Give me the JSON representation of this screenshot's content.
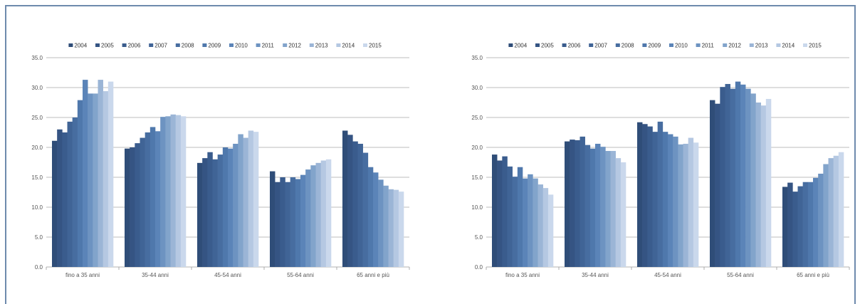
{
  "chart_data": [
    {
      "type": "bar",
      "title": "",
      "xlabel": "",
      "ylabel": "",
      "ylim": [
        0,
        35
      ],
      "yticks": [
        "0.0",
        "5.0",
        "10.0",
        "15.0",
        "20.0",
        "25.0",
        "30.0",
        "35.0"
      ],
      "grid": true,
      "legend_position": "top",
      "categories": [
        "fino a 35 anni",
        "35-44 anni",
        "45-54 anni",
        "55-64 anni",
        "65 anni e più"
      ],
      "series": [
        {
          "name": "2004",
          "color": "#2f4d78",
          "values": [
            21.1,
            19.8,
            17.4,
            16.0,
            22.8
          ]
        },
        {
          "name": "2005",
          "color": "#355483",
          "values": [
            23.0,
            20.0,
            18.2,
            14.2,
            22.1
          ]
        },
        {
          "name": "2006",
          "color": "#3a5c8d",
          "values": [
            22.5,
            20.7,
            19.2,
            15.0,
            21.0
          ]
        },
        {
          "name": "2007",
          "color": "#406496",
          "values": [
            24.3,
            21.6,
            18.0,
            14.2,
            20.6
          ]
        },
        {
          "name": "2008",
          "color": "#476da0",
          "values": [
            25.0,
            22.5,
            18.8,
            15.0,
            19.1
          ]
        },
        {
          "name": "2009",
          "color": "#4f78ac",
          "values": [
            27.9,
            23.4,
            20.0,
            14.7,
            16.7
          ]
        },
        {
          "name": "2010",
          "color": "#5b84b8",
          "values": [
            31.3,
            22.7,
            19.8,
            15.4,
            15.8
          ]
        },
        {
          "name": "2011",
          "color": "#6d93c1",
          "values": [
            29.0,
            25.1,
            20.6,
            16.3,
            14.6
          ]
        },
        {
          "name": "2012",
          "color": "#82a4cb",
          "values": [
            29.0,
            25.2,
            22.2,
            17.0,
            13.6
          ]
        },
        {
          "name": "2013",
          "color": "#9bb5d6",
          "values": [
            31.3,
            25.5,
            21.6,
            17.4,
            13.0
          ]
        },
        {
          "name": "2014",
          "color": "#b5c8e2",
          "values": [
            29.4,
            25.4,
            22.8,
            17.8,
            12.9
          ]
        },
        {
          "name": "2015",
          "color": "#cad8ec",
          "values": [
            31.0,
            25.2,
            22.6,
            18.0,
            12.6
          ]
        }
      ]
    },
    {
      "type": "bar",
      "title": "",
      "xlabel": "",
      "ylabel": "",
      "ylim": [
        0,
        35
      ],
      "yticks": [
        "0.0",
        "5.0",
        "10.0",
        "15.0",
        "20.0",
        "25.0",
        "30.0",
        "35.0"
      ],
      "grid": true,
      "legend_position": "top",
      "categories": [
        "fino a 35 anni",
        "35-44 anni",
        "45-54 anni",
        "55-64 anni",
        "65 anni e più"
      ],
      "series": [
        {
          "name": "2004",
          "color": "#2f4d78",
          "values": [
            18.8,
            21.0,
            24.2,
            27.9,
            13.4
          ]
        },
        {
          "name": "2005",
          "color": "#355483",
          "values": [
            17.8,
            21.3,
            23.9,
            27.3,
            14.1
          ]
        },
        {
          "name": "2006",
          "color": "#3a5c8d",
          "values": [
            18.5,
            21.2,
            23.5,
            30.1,
            12.6
          ]
        },
        {
          "name": "2007",
          "color": "#406496",
          "values": [
            16.8,
            21.8,
            22.6,
            30.6,
            13.5
          ]
        },
        {
          "name": "2008",
          "color": "#476da0",
          "values": [
            15.1,
            20.4,
            24.3,
            29.8,
            14.2
          ]
        },
        {
          "name": "2009",
          "color": "#4f78ac",
          "values": [
            16.7,
            19.8,
            22.6,
            31.0,
            14.2
          ]
        },
        {
          "name": "2010",
          "color": "#5b84b8",
          "values": [
            14.8,
            20.6,
            22.2,
            30.5,
            14.9
          ]
        },
        {
          "name": "2011",
          "color": "#6d93c1",
          "values": [
            15.5,
            20.1,
            21.8,
            29.8,
            15.6
          ]
        },
        {
          "name": "2012",
          "color": "#82a4cb",
          "values": [
            14.8,
            19.4,
            20.5,
            29.0,
            17.2
          ]
        },
        {
          "name": "2013",
          "color": "#9bb5d6",
          "values": [
            13.8,
            19.4,
            20.6,
            27.5,
            18.2
          ]
        },
        {
          "name": "2014",
          "color": "#b5c8e2",
          "values": [
            13.2,
            18.2,
            21.6,
            27.0,
            18.6
          ]
        },
        {
          "name": "2015",
          "color": "#cad8ec",
          "values": [
            12.1,
            17.5,
            20.8,
            28.1,
            19.2
          ]
        }
      ]
    }
  ]
}
